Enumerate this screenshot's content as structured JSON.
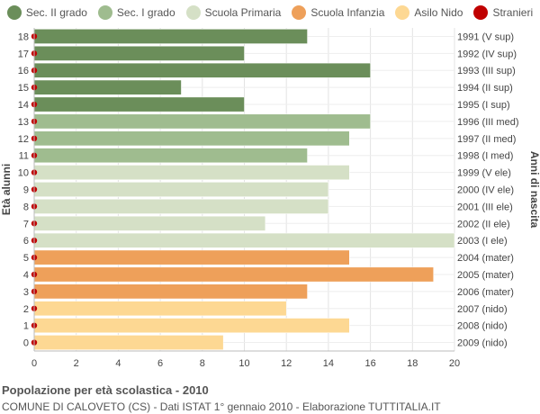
{
  "legend": [
    {
      "name": "Sec. II grado",
      "color": "#6b8e5a"
    },
    {
      "name": "Sec. I grado",
      "color": "#9fbc8f"
    },
    {
      "name": "Scuola Primaria",
      "color": "#d5e0c6"
    },
    {
      "name": "Scuola Infanzia",
      "color": "#eea05a"
    },
    {
      "name": "Asilo Nido",
      "color": "#fdd893"
    },
    {
      "name": "Stranieri",
      "color": "#c00000"
    }
  ],
  "footer": {
    "title": "Popolazione per età scolastica - 2010",
    "source": "COMUNE DI CALOVETO (CS) - Dati ISTAT 1° gennaio 2010 - Elaborazione TUTTITALIA.IT"
  },
  "chart_data": {
    "type": "bar",
    "orientation": "horizontal",
    "ylabel": "Età alunni",
    "ylabel_right": "Anni di nascita",
    "xlim": [
      0,
      20
    ],
    "xticks": [
      0,
      2,
      4,
      6,
      8,
      10,
      12,
      14,
      16,
      18,
      20
    ],
    "grid": true,
    "legend_position": "top",
    "rows": [
      {
        "age": "18",
        "birth": "1991 (V sup)",
        "value": 13,
        "group": "Sec. II grado",
        "stranieri": 0
      },
      {
        "age": "17",
        "birth": "1992 (IV sup)",
        "value": 10,
        "group": "Sec. II grado",
        "stranieri": 0
      },
      {
        "age": "16",
        "birth": "1993 (III sup)",
        "value": 16,
        "group": "Sec. II grado",
        "stranieri": 0
      },
      {
        "age": "15",
        "birth": "1994 (II sup)",
        "value": 7,
        "group": "Sec. II grado",
        "stranieri": 0
      },
      {
        "age": "14",
        "birth": "1995 (I sup)",
        "value": 10,
        "group": "Sec. II grado",
        "stranieri": 0
      },
      {
        "age": "13",
        "birth": "1996 (III med)",
        "value": 16,
        "group": "Sec. I grado",
        "stranieri": 0
      },
      {
        "age": "12",
        "birth": "1997 (II med)",
        "value": 15,
        "group": "Sec. I grado",
        "stranieri": 0
      },
      {
        "age": "11",
        "birth": "1998 (I med)",
        "value": 13,
        "group": "Sec. I grado",
        "stranieri": 0
      },
      {
        "age": "10",
        "birth": "1999 (V ele)",
        "value": 15,
        "group": "Scuola Primaria",
        "stranieri": 0
      },
      {
        "age": "9",
        "birth": "2000 (IV ele)",
        "value": 14,
        "group": "Scuola Primaria",
        "stranieri": 0
      },
      {
        "age": "8",
        "birth": "2001 (III ele)",
        "value": 14,
        "group": "Scuola Primaria",
        "stranieri": 0
      },
      {
        "age": "7",
        "birth": "2002 (II ele)",
        "value": 11,
        "group": "Scuola Primaria",
        "stranieri": 0
      },
      {
        "age": "6",
        "birth": "2003 (I ele)",
        "value": 20,
        "group": "Scuola Primaria",
        "stranieri": 0
      },
      {
        "age": "5",
        "birth": "2004 (mater)",
        "value": 15,
        "group": "Scuola Infanzia",
        "stranieri": 0
      },
      {
        "age": "4",
        "birth": "2005 (mater)",
        "value": 19,
        "group": "Scuola Infanzia",
        "stranieri": 0
      },
      {
        "age": "3",
        "birth": "2006 (mater)",
        "value": 13,
        "group": "Scuola Infanzia",
        "stranieri": 0
      },
      {
        "age": "2",
        "birth": "2007 (nido)",
        "value": 12,
        "group": "Asilo Nido",
        "stranieri": 0
      },
      {
        "age": "1",
        "birth": "2008 (nido)",
        "value": 15,
        "group": "Asilo Nido",
        "stranieri": 0
      },
      {
        "age": "0",
        "birth": "2009 (nido)",
        "value": 9,
        "group": "Asilo Nido",
        "stranieri": 0
      }
    ]
  }
}
